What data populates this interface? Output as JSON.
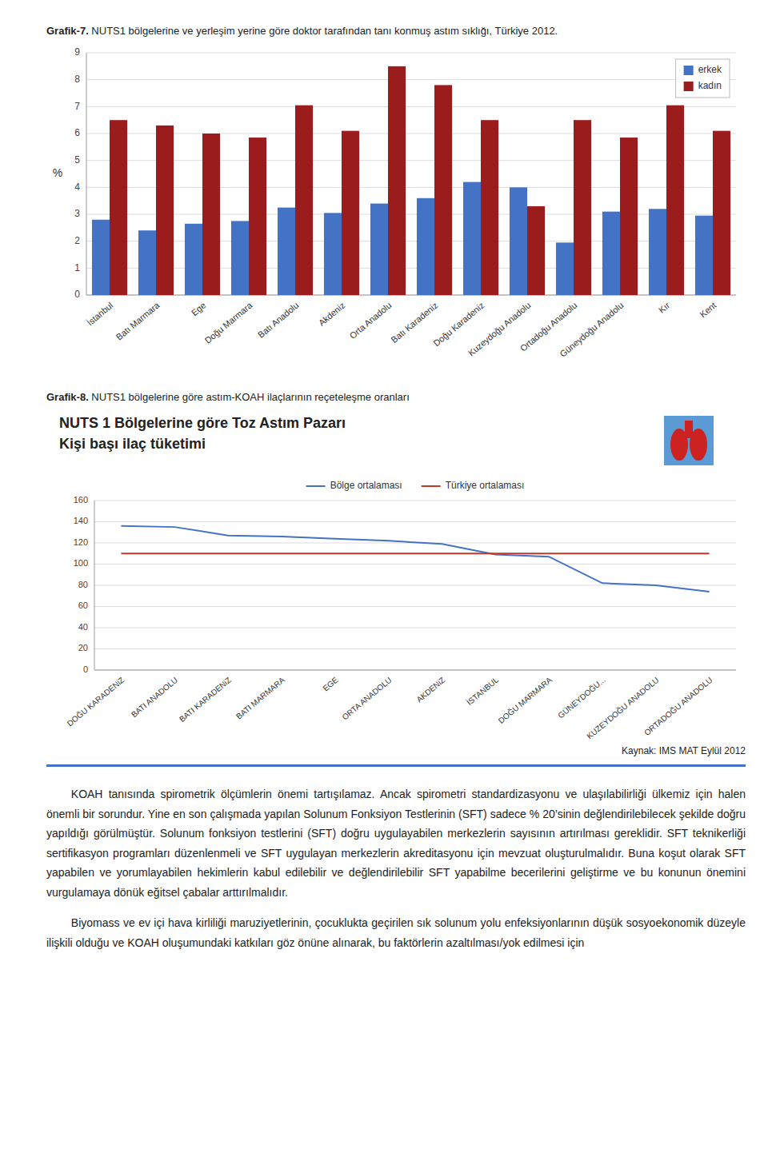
{
  "chart_data": [
    {
      "type": "bar",
      "title": "Grafik-7. NUTS1 bölgelerine ve yerleşim yerine göre doktor tarafından tanı konmuş astım sıklığı, Türkiye 2012.",
      "ylabel": "%",
      "categories": [
        "İstanbul",
        "Batı Marmara",
        "Ege",
        "Doğu Marmara",
        "Batı Anadolu",
        "Akdeniz",
        "Orta Anadolu",
        "Batı Karadeniz",
        "Doğu Karadeniz",
        "Kuzeydоğu Anadolu",
        "Ortadoğu Anadolu",
        "Güneydоğu Anadolu",
        "Kır",
        "Kent"
      ],
      "series": [
        {
          "name": "erkek",
          "color": "#4472c4",
          "values": [
            2.8,
            2.4,
            2.65,
            2.75,
            3.25,
            3.05,
            3.4,
            3.6,
            4.2,
            4.0,
            1.95,
            3.1,
            3.2,
            2.95
          ]
        },
        {
          "name": "kadın",
          "color": "#9b1c1c",
          "values": [
            6.5,
            6.3,
            6.0,
            5.85,
            7.05,
            6.1,
            8.5,
            7.8,
            6.5,
            3.3,
            6.5,
            5.85,
            7.05,
            6.1
          ]
        }
      ],
      "ylim": [
        0,
        9
      ],
      "yticks": [
        0,
        1,
        2,
        3,
        4,
        5,
        6,
        7,
        8,
        9
      ],
      "grid": true,
      "legend": "upper-right"
    },
    {
      "type": "line",
      "title": "Grafik-8. NUTS1 bölgelerine göre astım-KOAH ilaçlarının reçeteleşme oranları",
      "subtitle": [
        "NUTS 1 Bölgelerine göre Toz Astım Pazarı",
        "Kişi başı ilaç tüketimi"
      ],
      "categories": [
        "DOĞU KARADENiZ",
        "BATI ANADOLU",
        "BATI KARADENiZ",
        "BATI MARMARA",
        "EGE",
        "ORTA ANADOLU",
        "AKDENiZ",
        "İSTANBUL",
        "DOĞU MARMARA",
        "GÜNEYDOĞU...",
        "KUZEYDОĞU ANADOLU",
        "ORTADOĞU ANADOLU"
      ],
      "series": [
        {
          "name": "Bölge ortalaması",
          "color": "#4472c4",
          "values": [
            136,
            135,
            127,
            126,
            124,
            122,
            119,
            109,
            107,
            82,
            80,
            74
          ]
        },
        {
          "name": "Türkiye ortalaması",
          "color": "#c0392b",
          "values": [
            110,
            110,
            110,
            110,
            110,
            110,
            110,
            110,
            110,
            110,
            110,
            110
          ]
        }
      ],
      "ylim": [
        0,
        160
      ],
      "yticks": [
        0,
        20,
        40,
        60,
        80,
        100,
        120,
        140,
        160
      ],
      "grid": true,
      "legend": "top",
      "annotations": [
        "Kaynak: IMS MAT Eylül 2012"
      ]
    }
  ],
  "paragraphs": [
    "KOAH tanısında spirometrik ölçümlerin önemi tartışılamaz. Ancak spirometri standardizasyonu ve ulaşılabilirliği ülkemiz için halen önemli bir sorundur. Yine en son çalışmada yapılan Solunum Fonksiyon Testlerinin (SFT) sadece % 20’sinin değlendirilebilecek şekilde doğru yapıldığı görülmüştür. Solunum fonksiyon testlerini (SFT) doğru uygulayabilen merkezlerin sayısının artırılması gereklidir. SFT teknikerliği sertifikasyon programları düzenlenmeli ve SFT uygulayan merkezlerin akreditasyonu için mevzuat oluşturulmalıdır. Buna koşut olarak SFT yapabilen ve yorumlayabilen hekimlerin kabul edilebilir ve değlendirilebilir SFT yapabilme becerilerini geliştirme ve bu konunun önemini vurgulamaya dönük eğitsel çabalar arttırılmalıdır.",
    "Biyomass ve ev içi hava kirliliği maruziyetlerinin, çocuklukta geçirilen sık solunum yolu enfeksiyonlarının düşük sosyoekonomik düzeyle ilişkili olduğu ve KOAH oluşumundaki katkıları göz önüne alınarak, bu faktörlerin azaltılması/yok edilmesi için"
  ]
}
